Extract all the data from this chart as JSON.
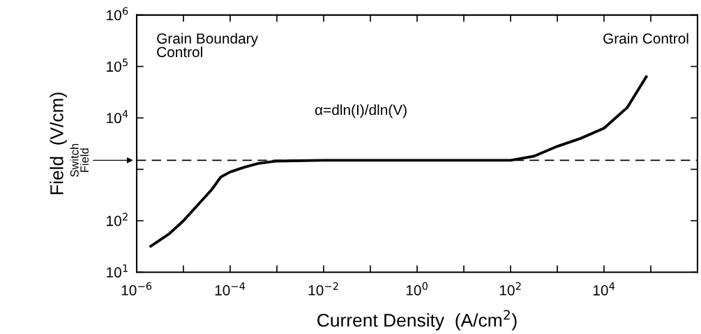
{
  "chart_data": {
    "type": "line",
    "xlabel": "Current Density  (A/cm$^{2}$)",
    "ylabel": "Field  (V/cm)",
    "log": "xy",
    "grid": false,
    "legend": false,
    "marker": "none",
    "line_style": "solid",
    "x": [
      2e-06,
      5e-06,
      1e-05,
      2e-05,
      4e-05,
      6.3e-05,
      0.0001,
      0.0002,
      0.0004,
      0.001,
      0.01,
      1,
      10,
      100,
      316,
      1000,
      3160,
      10000,
      31600,
      80000
    ],
    "series": [
      {
        "color": "#000000",
        "values": [
          32,
          56,
          100,
          200,
          400,
          710,
          890,
          1100,
          1300,
          1450,
          1500,
          1500,
          1500,
          1500,
          1800,
          2800,
          4000,
          6300,
          16000,
          63000
        ]
      }
    ],
    "xlim": [
      1e-06,
      1000000.0
    ],
    "ylim": [
      10,
      1000000
    ],
    "xticks": [
      {
        "value": 1e-06,
        "label": "10$^{−6}$"
      },
      {
        "value": 1e-05,
        "label": null
      },
      {
        "value": 0.0001,
        "label": "10$^{−4}$"
      },
      {
        "value": 0.001,
        "label": null
      },
      {
        "value": 0.01,
        "label": "10$^{−2}$"
      },
      {
        "value": 0.1,
        "label": null
      },
      {
        "value": 1,
        "label": "10$^{0}$"
      },
      {
        "value": 10,
        "label": null
      },
      {
        "value": 100,
        "label": "10$^{2}$"
      },
      {
        "value": 1000,
        "label": null
      },
      {
        "value": 10000,
        "label": "10$^{4}$"
      },
      {
        "value": 100000,
        "label": null
      }
    ],
    "yticks": [
      {
        "value": 10,
        "label": "10$^{1}$"
      },
      {
        "value": 100,
        "label": "10$^{2}$"
      },
      {
        "value": 1000,
        "label": null
      },
      {
        "value": 10000,
        "label": "10$^{4}$"
      },
      {
        "value": 100000,
        "label": "10$^{5}$"
      },
      {
        "value": 1000000,
        "label": "10$^{6}$"
      }
    ],
    "ref_lines": [
      {
        "axis": "y",
        "value": 1500,
        "label": "Switch\nField",
        "line_style": "dashed",
        "color": "#000000"
      }
    ],
    "annotations": [
      "Grain Boundary\nControl",
      "Grain Control",
      "α=dln(I)/dln(V)"
    ]
  }
}
